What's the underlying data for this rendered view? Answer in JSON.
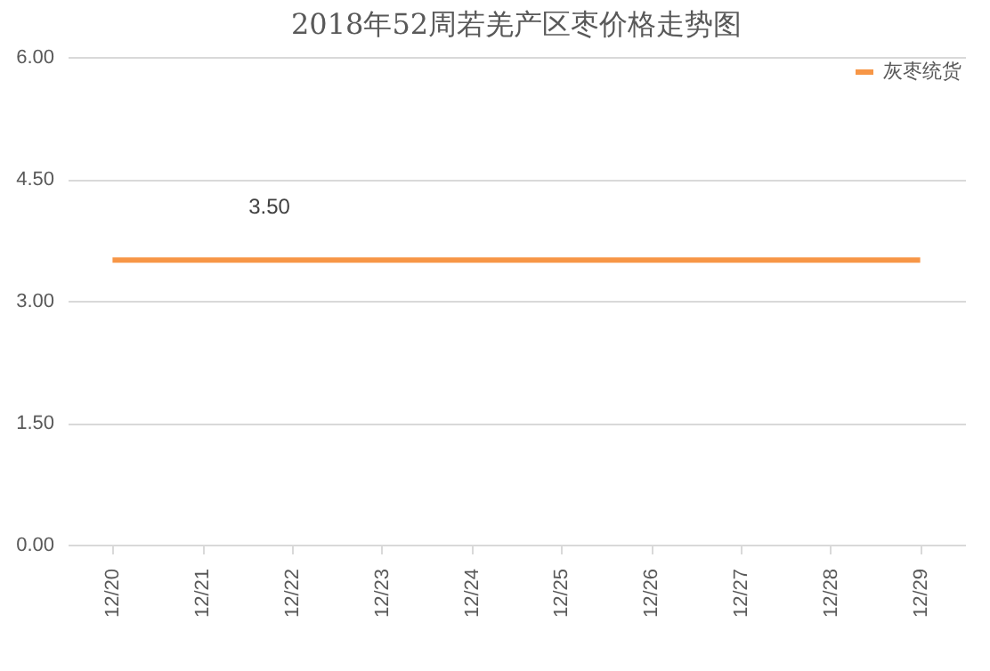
{
  "chart_data": {
    "type": "line",
    "title": "2018年52周若羌产区枣价格走势图",
    "categories": [
      "12/20",
      "12/21",
      "12/22",
      "12/23",
      "12/24",
      "12/25",
      "12/26",
      "12/27",
      "12/28",
      "12/29"
    ],
    "series": [
      {
        "name": "灰枣统货",
        "color": "#f79646",
        "values": [
          3.5,
          3.5,
          3.5,
          3.5,
          3.5,
          3.5,
          3.5,
          3.5,
          3.5,
          3.5
        ]
      }
    ],
    "ylim": [
      0,
      6
    ],
    "yticks": [
      {
        "value": 0,
        "label": "0.00"
      },
      {
        "value": 1.5,
        "label": "1.50"
      },
      {
        "value": 3,
        "label": "3.00"
      },
      {
        "value": 4.5,
        "label": "4.50"
      },
      {
        "value": 6,
        "label": "6.00"
      }
    ],
    "grid": "y",
    "legend": "top right",
    "marker": "none",
    "line_style": "solid",
    "annotations": [
      {
        "text": "3.50",
        "x": "12/21",
        "y": 3.5
      }
    ]
  }
}
